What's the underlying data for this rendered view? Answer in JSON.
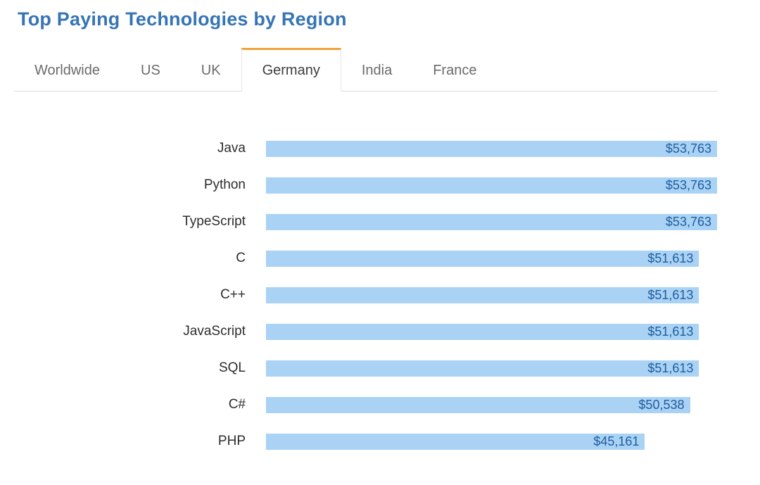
{
  "page": {
    "title": "Top Paying Technologies by Region"
  },
  "colors": {
    "title": "#3674b5",
    "accent_orange": "#f0a33c",
    "bar_fill": "#a9d2f5",
    "bar_value_text": "#1f5d9c",
    "tab_inactive_text": "#6b6b6b",
    "tab_active_text": "#3d3d3d",
    "border": "#dddddd",
    "tab_border": "#e4e4e4",
    "label_text": "#2d2d2d"
  },
  "tabs": {
    "items": [
      {
        "label": "Worldwide",
        "active": false
      },
      {
        "label": "US",
        "active": false
      },
      {
        "label": "UK",
        "active": false
      },
      {
        "label": "Germany",
        "active": true
      },
      {
        "label": "India",
        "active": false
      },
      {
        "label": "France",
        "active": false
      }
    ]
  },
  "chart_data": {
    "type": "bar",
    "orientation": "horizontal",
    "title": "Top Paying Technologies by Region",
    "region_selected": "Germany",
    "categories": [
      "Java",
      "Python",
      "TypeScript",
      "C",
      "C++",
      "JavaScript",
      "SQL",
      "C#",
      "PHP"
    ],
    "values": [
      53763,
      53763,
      53763,
      51613,
      51613,
      51613,
      51613,
      50538,
      45161
    ],
    "value_labels": [
      "$53,763",
      "$53,763",
      "$53,763",
      "$51,613",
      "$51,613",
      "$51,613",
      "$51,613",
      "$50,538",
      "$45,161"
    ],
    "value_unit": "USD",
    "xlim": [
      0,
      53763
    ],
    "grid": false,
    "legend": false,
    "value_label_position": "inside-right"
  }
}
